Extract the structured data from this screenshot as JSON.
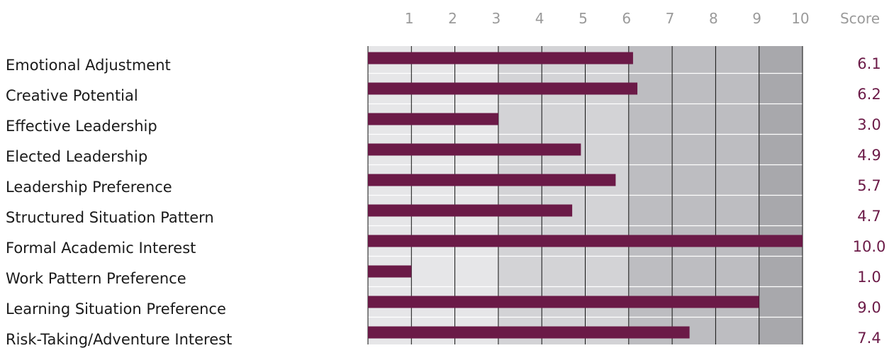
{
  "chart_data": {
    "type": "bar",
    "orientation": "horizontal",
    "categories": [
      "Emotional Adjustment",
      "Creative Potential",
      "Effective Leadership",
      "Elected Leadership",
      "Leadership Preference",
      "Structured Situation Pattern",
      "Formal Academic Interest",
      "Work Pattern Preference",
      "Learning Situation Preference",
      "Risk-Taking/Adventure Interest"
    ],
    "values": [
      6.1,
      6.2,
      3.0,
      4.9,
      5.7,
      4.7,
      10.0,
      1.0,
      9.0,
      7.4
    ],
    "value_labels": [
      "6.1",
      "6.2",
      "3.0",
      "4.9",
      "5.7",
      "4.7",
      "10.0",
      "1.0",
      "9.0",
      "7.4"
    ],
    "x_ticks": [
      "1",
      "2",
      "3",
      "4",
      "5",
      "6",
      "7",
      "8",
      "9",
      "10"
    ],
    "score_header": "Score",
    "xlim": [
      0,
      10
    ],
    "grid": true,
    "legend": "none",
    "colors": {
      "bar": "#6b1a47",
      "score_text": "#6b1a47",
      "label_text": "#1a1a1a",
      "tick_text": "#9a9a9a",
      "band_low": "#e6e6e8",
      "band_mid": "#d3d3d6",
      "band_high": "#bdbdc1",
      "band_top": "#a8a8ac",
      "grid_line": "#111111"
    }
  }
}
